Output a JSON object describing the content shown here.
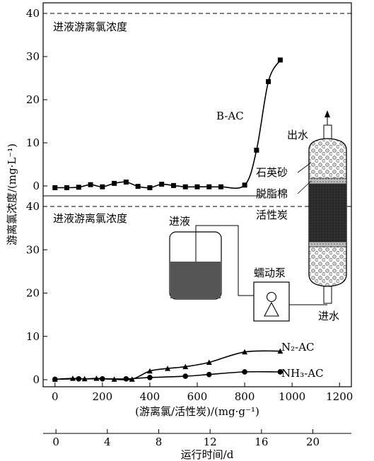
{
  "chart_data": {
    "type": "line",
    "ylabel": "游离氯浓度/(mg·L⁻¹)",
    "xlabel": "(游离氯/活性炭)/(mg·g⁻¹)",
    "x2label": "运行时间/d",
    "xlim": [
      -50,
      1250
    ],
    "xticks": [
      0,
      200,
      400,
      600,
      800,
      1000,
      1200
    ],
    "x2lim": [
      -1,
      23
    ],
    "x2ticks": [
      0,
      4,
      8,
      12,
      16,
      20
    ],
    "panels": [
      {
        "ylim": [
          -2,
          42
        ],
        "yticks": [
          0,
          10,
          20,
          30,
          40
        ],
        "reference_line": {
          "y": 40,
          "label": "进液游离氯浓度"
        },
        "series": [
          {
            "name": "B-AC",
            "marker": "square",
            "points": [
              [
                0,
                -0.4
              ],
              [
                50,
                -0.4
              ],
              [
                100,
                -0.3
              ],
              [
                150,
                0.3
              ],
              [
                200,
                -0.2
              ],
              [
                250,
                0.6
              ],
              [
                300,
                0.9
              ],
              [
                350,
                -0.1
              ],
              [
                400,
                -0.4
              ],
              [
                450,
                0.4
              ],
              [
                500,
                0.1
              ],
              [
                550,
                -0.2
              ],
              [
                600,
                -0.2
              ],
              [
                650,
                -0.2
              ],
              [
                700,
                -0.2
              ],
              [
                800,
                0.2
              ],
              [
                850,
                8.3
              ],
              [
                900,
                24.2
              ],
              [
                950,
                29.2
              ]
            ]
          }
        ]
      },
      {
        "ylim": [
          -2,
          42
        ],
        "yticks": [
          0,
          10,
          20,
          30,
          40
        ],
        "reference_line": {
          "y": 40,
          "label": "进液游离氯浓度"
        },
        "series": [
          {
            "name": "N₂-AC",
            "marker": "triangle",
            "points": [
              [
                0,
                0.1
              ],
              [
                75,
                0.3
              ],
              [
                125,
                0.2
              ],
              [
                175,
                0.3
              ],
              [
                250,
                0.1
              ],
              [
                325,
                0.1
              ],
              [
                400,
                2.0
              ],
              [
                475,
                2.6
              ],
              [
                550,
                3.0
              ],
              [
                650,
                4.0
              ],
              [
                800,
                6.4
              ],
              [
                950,
                6.6
              ]
            ]
          },
          {
            "name": "NH₃-AC",
            "marker": "circle",
            "points": [
              [
                0,
                0.1
              ],
              [
                100,
                0.2
              ],
              [
                200,
                0.2
              ],
              [
                300,
                0.2
              ],
              [
                400,
                0.5
              ],
              [
                550,
                0.8
              ],
              [
                650,
                1.2
              ],
              [
                800,
                1.8
              ],
              [
                950,
                1.8
              ]
            ]
          }
        ]
      }
    ]
  },
  "inset": {
    "label_outlet": "出水",
    "label_quartz": "石英砂",
    "label_cotton": "脱脂棉",
    "label_carbon": "活性炭",
    "label_feed": "进液",
    "label_pump": "蠕动泵",
    "label_inlet": "进水"
  }
}
